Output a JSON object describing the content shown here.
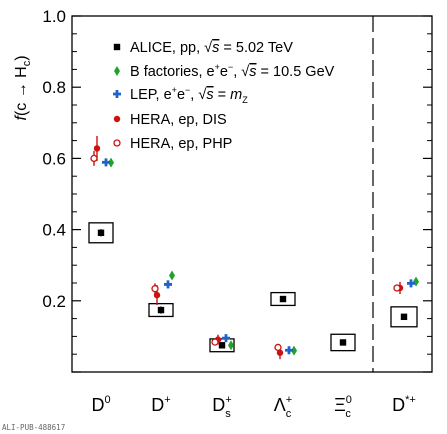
{
  "chart_data": {
    "type": "scatter",
    "y_label": "f(c → H_c)",
    "y_range": [
      0.0,
      1.0
    ],
    "y_ticks": [
      {
        "value": 0.2,
        "label": "0.2"
      },
      {
        "value": 0.4,
        "label": "0.4"
      },
      {
        "value": 0.6,
        "label": "0.6"
      },
      {
        "value": 0.8,
        "label": "0.8"
      },
      {
        "value": 1.0,
        "label": "1.0"
      }
    ],
    "categories": [
      {
        "main": "D",
        "sup": "0",
        "sub": ""
      },
      {
        "main": "D",
        "sup": "+",
        "sub": ""
      },
      {
        "main": "D",
        "sup": "+",
        "sub": "s"
      },
      {
        "main": "Λ",
        "sup": "+",
        "sub": "c"
      },
      {
        "main": "Ξ",
        "sup": "0",
        "sub": "c"
      },
      {
        "main": "D",
        "sup": "*+",
        "sub": ""
      }
    ],
    "separator_after_category": 4,
    "legend_position": "top-center",
    "series": [
      {
        "name": "ALICE, pp, √s = 5.02 TeV",
        "legend_parts": [
          {
            "t": "ALICE, pp, "
          },
          {
            "t": "√",
            "style": "normal"
          },
          {
            "t": "s",
            "style": "italic",
            "over": true
          },
          {
            "t": " = 5.02 TeV"
          }
        ],
        "marker": "square",
        "color": "#000000",
        "syst_box": true,
        "values": [
          0.391,
          0.174,
          0.075,
          0.205,
          0.083,
          0.155
        ],
        "errors": [
          0.01,
          0.01,
          0.006,
          0.008,
          0.006,
          0.006
        ],
        "box_half_height": [
          0.028,
          0.018,
          0.018,
          0.018,
          0.023,
          0.028
        ],
        "offsets": [
          0,
          0,
          0,
          0,
          0,
          0
        ]
      },
      {
        "name": "B factories, e+e−, √s = 10.5 GeV",
        "legend_parts": [
          {
            "t": "B factories, e"
          },
          {
            "t": "+",
            "sup": true
          },
          {
            "t": "e"
          },
          {
            "t": "−",
            "sup": true
          },
          {
            "t": ", "
          },
          {
            "t": "√",
            "style": "normal"
          },
          {
            "t": "s",
            "style": "italic",
            "over": true
          },
          {
            "t": " = 10.5 GeV"
          }
        ],
        "marker": "diamond",
        "color": "#1fa32a",
        "values": [
          0.588,
          0.271,
          0.075,
          0.06,
          null,
          0.254
        ],
        "errors": [
          0.008,
          0.008,
          0.005,
          0.004,
          null,
          0.009
        ],
        "offsets": [
          10,
          11,
          9,
          11,
          0,
          12
        ]
      },
      {
        "name": "LEP, e+e−, √s = mZ",
        "legend_parts": [
          {
            "t": "LEP, e"
          },
          {
            "t": "+",
            "sup": true
          },
          {
            "t": "e"
          },
          {
            "t": "−",
            "sup": true
          },
          {
            "t": ", "
          },
          {
            "t": "√",
            "style": "normal"
          },
          {
            "t": "s",
            "style": "italic",
            "over": true
          },
          {
            "t": " = "
          },
          {
            "t": "m",
            "style": "italic"
          },
          {
            "t": "Z",
            "sub": true
          }
        ],
        "marker": "cross",
        "color": "#1f63c8",
        "values": [
          0.589,
          0.246,
          0.095,
          0.061,
          null,
          0.249
        ],
        "errors": [
          0.01,
          0.011,
          0.008,
          0.008,
          null,
          0.008
        ],
        "offsets": [
          5,
          7,
          4,
          6,
          0,
          7
        ]
      },
      {
        "name": "HERA, ep, DIS",
        "legend_parts": [
          {
            "t": "HERA, ep, DIS"
          }
        ],
        "marker": "circle",
        "color": "#cc1111",
        "values": [
          0.628,
          0.216,
          0.091,
          0.054,
          null,
          0.236
        ],
        "errors": [
          0.035,
          0.028,
          0.014,
          0.018,
          null,
          0.017
        ],
        "offsets": [
          -4,
          -4,
          -4,
          -3,
          0,
          -4
        ]
      },
      {
        "name": "HERA, ep, PHP",
        "legend_parts": [
          {
            "t": "HERA, ep, PHP"
          }
        ],
        "marker": "open-circle",
        "color": "#cc1111",
        "values": [
          0.6,
          0.234,
          0.084,
          0.069,
          null,
          0.236
        ],
        "errors": [
          0.021,
          0.015,
          0.009,
          0.01,
          null,
          0.01
        ],
        "offsets": [
          -7,
          -6,
          -7,
          -5,
          0,
          -7
        ]
      }
    ]
  },
  "footer": "ALI-PUB-488617"
}
